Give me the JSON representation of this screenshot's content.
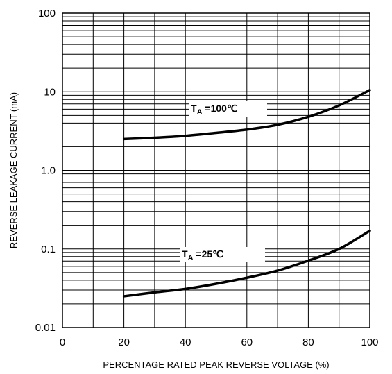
{
  "chart_data": {
    "type": "line",
    "xlabel": "PERCENTAGE RATED PEAK REVERSE VOLTAGE (%)",
    "ylabel": "REVERSE LEAKAGE CURRENT (mA)",
    "xlim": [
      0,
      100
    ],
    "ylim": [
      0.01,
      100
    ],
    "yscale": "log",
    "grid": true,
    "x_ticks": [
      "0",
      "20",
      "40",
      "60",
      "80",
      "100"
    ],
    "y_ticks": [
      "0.01",
      "0.1",
      "1.0",
      "10",
      "100"
    ],
    "series": [
      {
        "label_main": "T",
        "label_sub": "A",
        "label_rest": " =100℃",
        "x": [
          20,
          30,
          40,
          50,
          60,
          70,
          80,
          90,
          100
        ],
        "y": [
          2.5,
          2.6,
          2.75,
          3.0,
          3.3,
          3.8,
          4.8,
          6.7,
          10.5
        ]
      },
      {
        "label_main": "T",
        "label_sub": "A",
        "label_rest": " =25℃",
        "x": [
          20,
          30,
          40,
          50,
          60,
          70,
          80,
          90,
          100
        ],
        "y": [
          0.025,
          0.028,
          0.031,
          0.036,
          0.043,
          0.053,
          0.071,
          0.1,
          0.17
        ]
      }
    ]
  }
}
